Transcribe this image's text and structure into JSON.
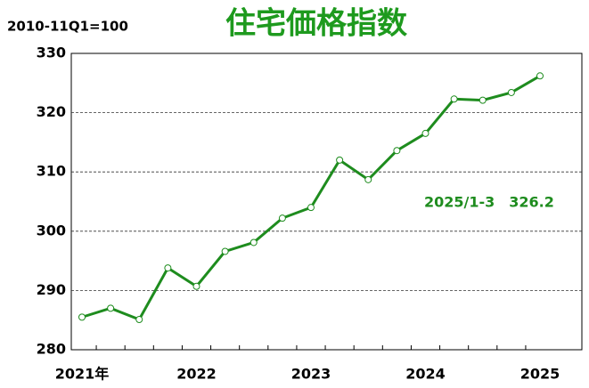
{
  "chart_data": {
    "type": "line",
    "title": "住宅価格指数",
    "y_unit_label": "2010-11Q1=100",
    "annotation": "2025/1-3　326.2",
    "categories": [
      "2021年",
      null,
      null,
      null,
      "2022",
      null,
      null,
      null,
      "2023",
      null,
      null,
      null,
      "2024",
      null,
      null,
      null,
      "2025"
    ],
    "series": [
      {
        "name": "住宅価格指数",
        "color": "#1e8c1e",
        "values": [
          285.5,
          287.0,
          285.1,
          293.8,
          290.7,
          296.6,
          298.1,
          302.2,
          304.0,
          312.0,
          308.7,
          313.6,
          316.5,
          322.3,
          322.1,
          323.4,
          326.2
        ]
      }
    ],
    "ylim": [
      280,
      330
    ],
    "yticks": [
      280,
      290,
      300,
      310,
      320,
      330
    ],
    "grid": true
  }
}
